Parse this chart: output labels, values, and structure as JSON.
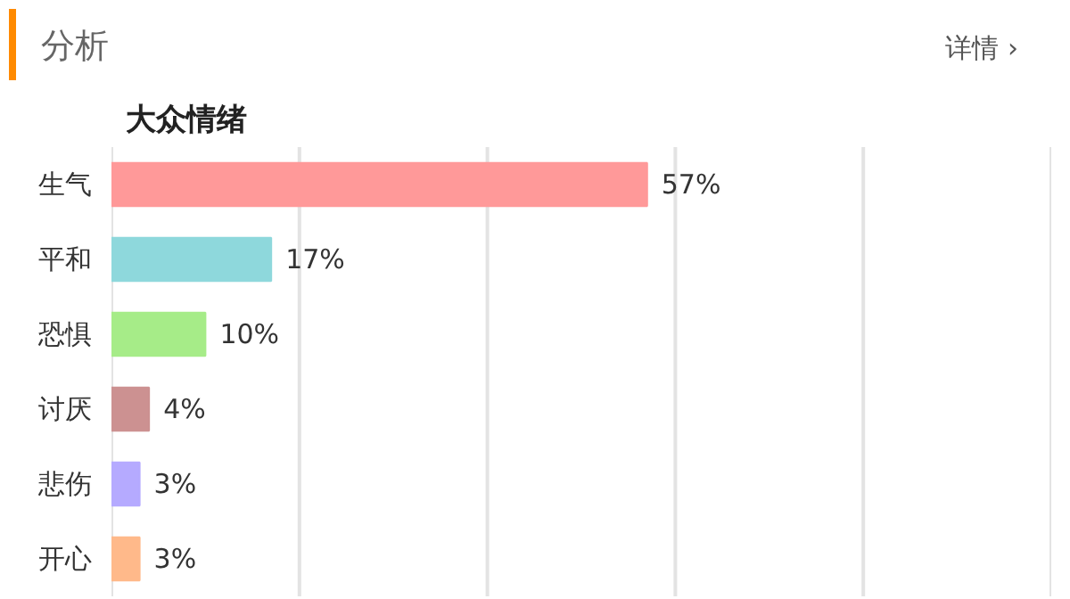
{
  "chart_data": {
    "type": "bar",
    "orientation": "horizontal",
    "title": "分析",
    "subtitle": "大众情绪",
    "annotations": [
      "详情 ›"
    ],
    "categories": [
      "生气",
      "平和",
      "恐惧",
      "讨厌",
      "悲伤",
      "开心"
    ],
    "values": [
      57,
      17,
      10,
      4,
      3,
      3
    ],
    "value_labels": [
      "57%",
      "17%",
      "10%",
      "4%",
      "3%",
      "3%"
    ],
    "colors": [
      "#ff9999",
      "#8ed8dc",
      "#a6ec88",
      "#cc9191",
      "#b5aaff",
      "#ffb98a"
    ],
    "xlim": [
      0,
      100
    ],
    "xticks": [
      {
        "value": 0,
        "label": null
      },
      {
        "value": 20,
        "label": null
      },
      {
        "value": 40,
        "label": null
      },
      {
        "value": 60,
        "label": null
      },
      {
        "value": 80,
        "label": null
      },
      {
        "value": 100,
        "label": null
      }
    ],
    "grid": "x",
    "tick_labels": "y"
  }
}
